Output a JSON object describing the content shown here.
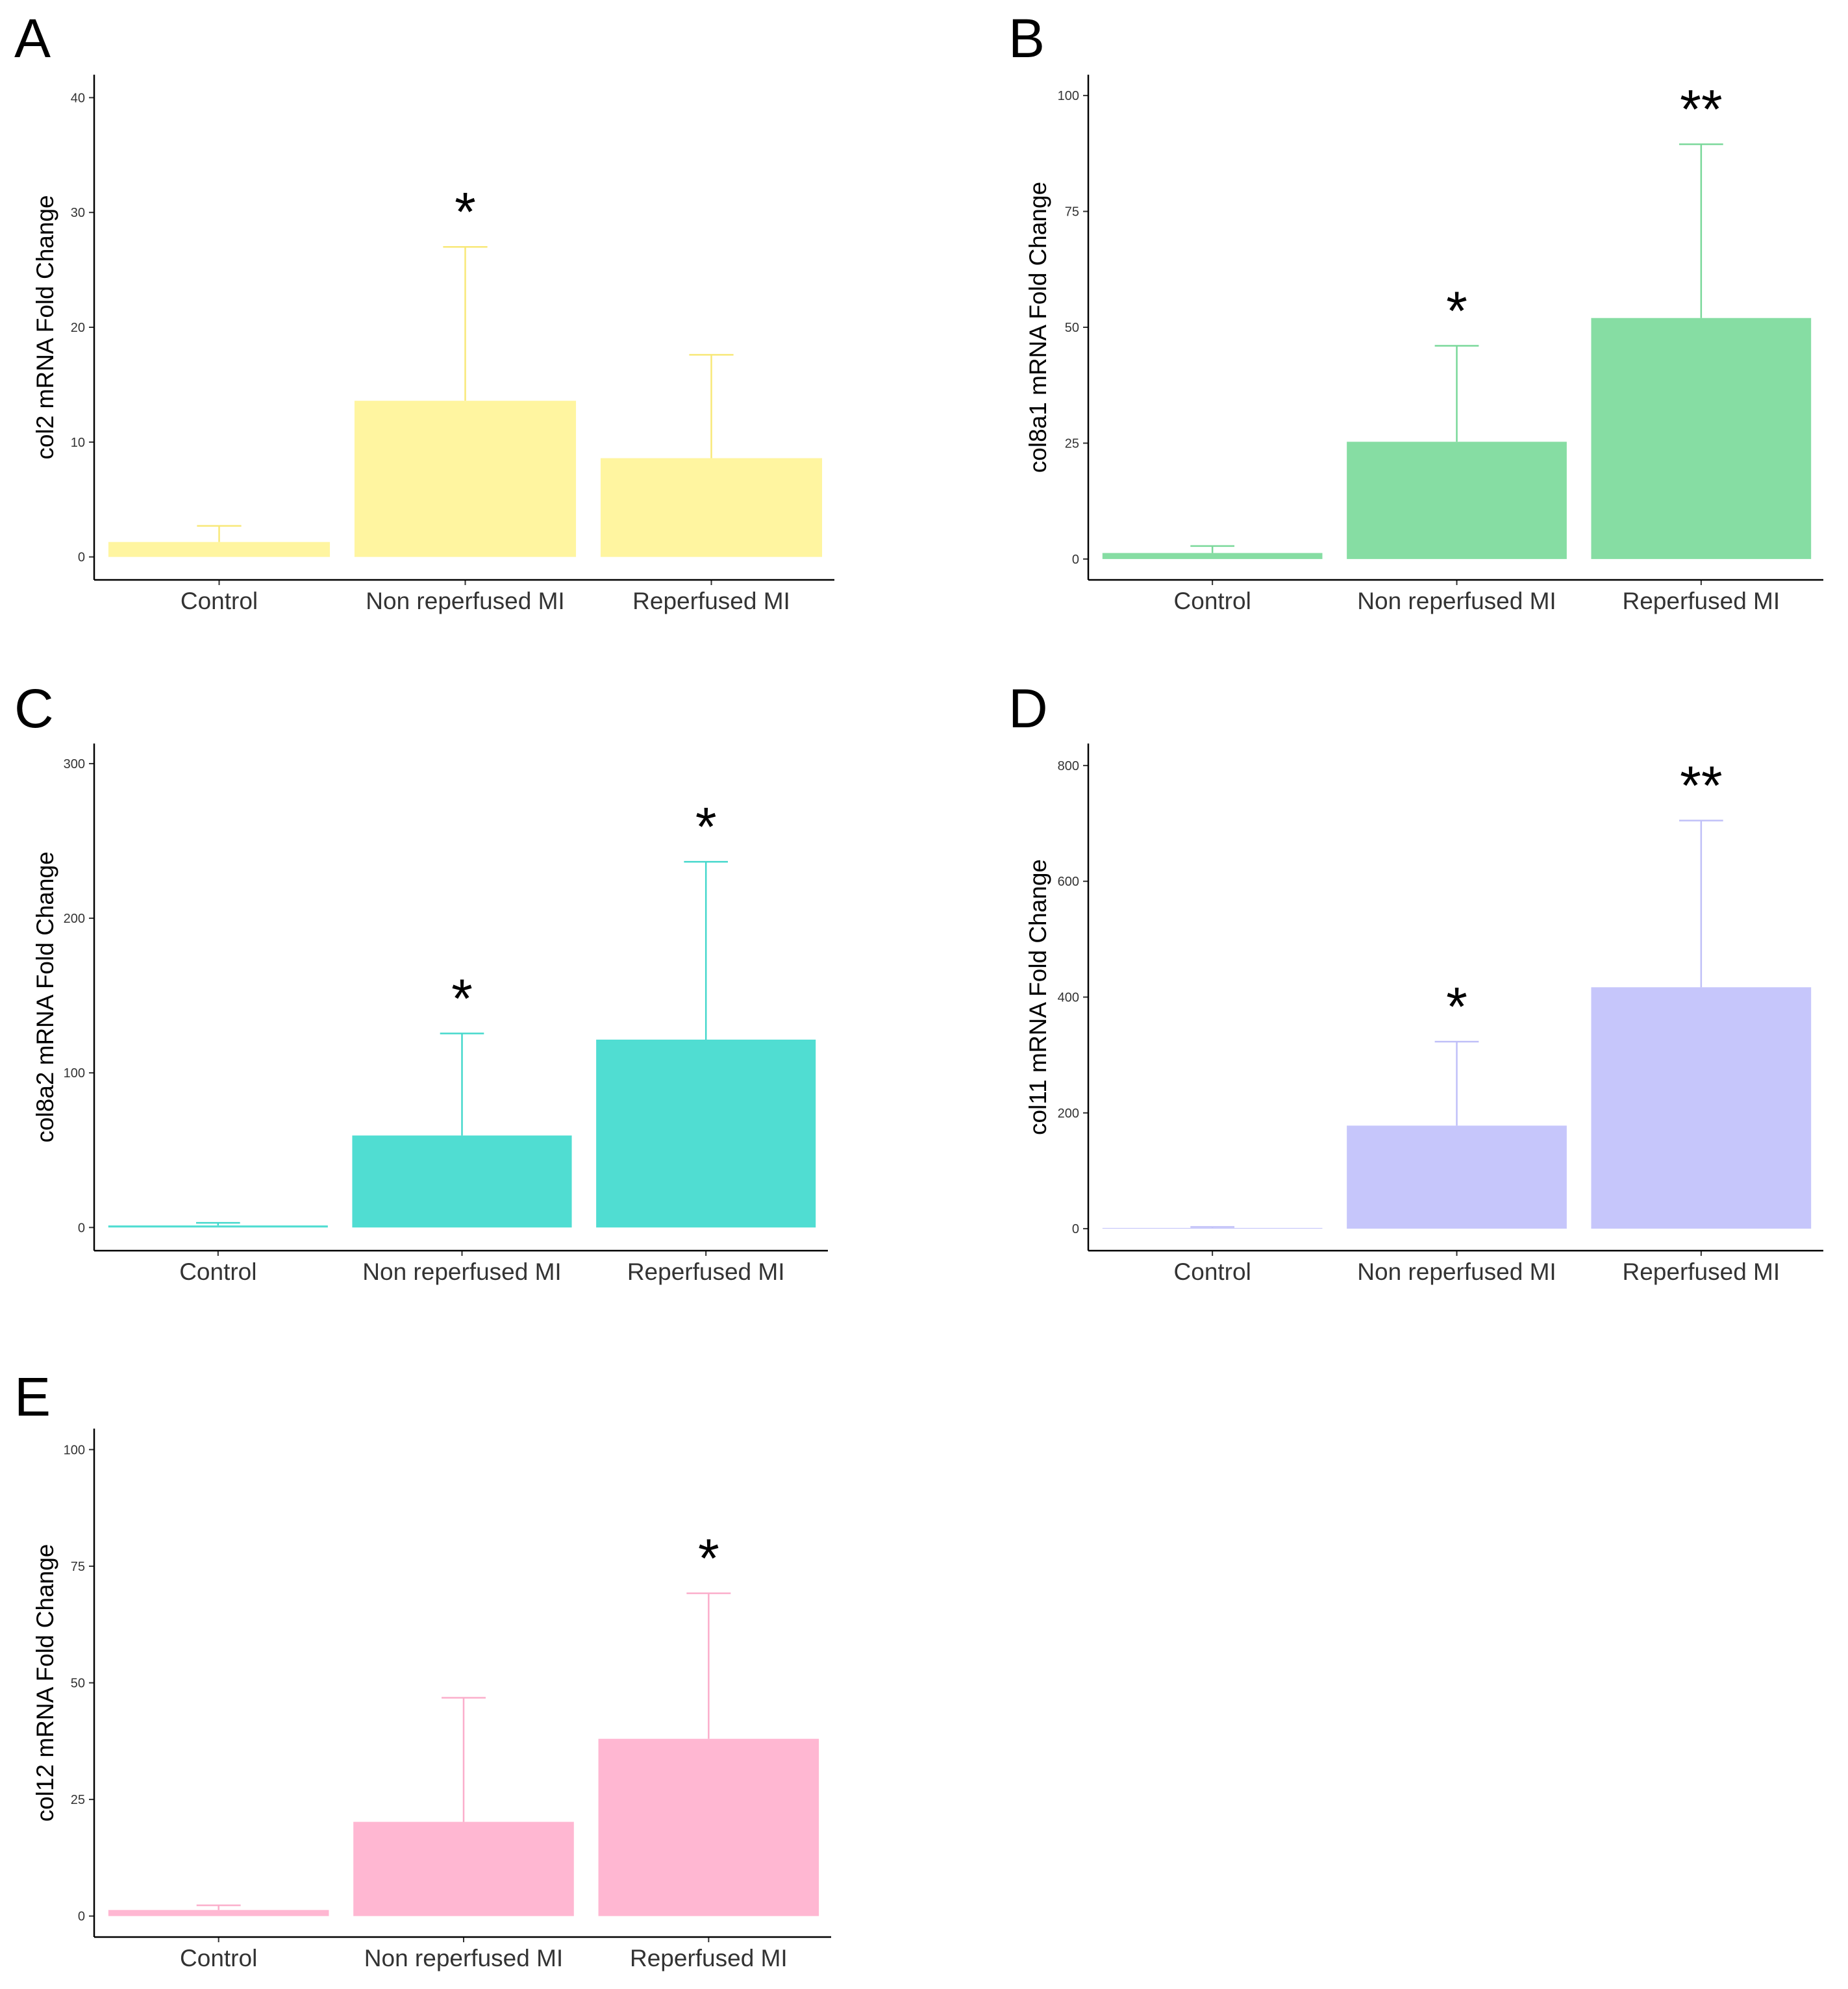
{
  "figure": {
    "background": "#ffffff"
  },
  "chart_data": [
    {
      "panel": "A",
      "type": "bar",
      "categories": [
        "Control",
        "Non reperfused MI",
        "Reperfused MI"
      ],
      "values": [
        1.3,
        13.6,
        8.6
      ],
      "error_upper": [
        2.7,
        27.0,
        17.6
      ],
      "significance": [
        "",
        "*",
        ""
      ],
      "ylabel": "col2 mRNA Fold Change",
      "xlabel": "",
      "ylim": [
        -2,
        42
      ],
      "yticks": [
        0,
        10,
        20,
        30,
        40
      ],
      "color": "#fff5a0",
      "error_color": "#f8e878"
    },
    {
      "panel": "B",
      "type": "bar",
      "categories": [
        "Control",
        "Non reperfused MI",
        "Reperfused MI"
      ],
      "values": [
        1.3,
        25.3,
        52.0
      ],
      "error_upper": [
        2.8,
        46.0,
        89.5
      ],
      "significance": [
        "",
        "*",
        "**"
      ],
      "ylabel": "col8a1 mRNA Fold Change",
      "xlabel": "",
      "ylim": [
        -4.5,
        104.5
      ],
      "yticks": [
        0,
        25,
        50,
        75,
        100
      ],
      "color": "#86dda3",
      "error_color": "#7ad89a"
    },
    {
      "panel": "C",
      "type": "bar",
      "categories": [
        "Control",
        "Non reperfused MI",
        "Reperfused MI"
      ],
      "values": [
        1.3,
        59.5,
        121.5
      ],
      "error_upper": [
        3.0,
        125.5,
        236.5
      ],
      "significance": [
        "",
        "*",
        "*"
      ],
      "ylabel": "col8a2 mRNA Fold Change",
      "xlabel": "",
      "ylim": [
        -15,
        313
      ],
      "yticks": [
        0,
        100,
        200,
        300
      ],
      "color": "#50ddd2",
      "error_color": "#45d8cc"
    },
    {
      "panel": "D",
      "type": "bar",
      "categories": [
        "Control",
        "Non reperfused MI",
        "Reperfused MI"
      ],
      "values": [
        1.3,
        178.0,
        417.0
      ],
      "error_upper": [
        3.0,
        323.0,
        705.0
      ],
      "significance": [
        "",
        "*",
        "**"
      ],
      "ylabel": "col11 mRNA Fold Change",
      "xlabel": "",
      "ylim": [
        -38,
        838
      ],
      "yticks": [
        0,
        200,
        400,
        600,
        800
      ],
      "color": "#c6c6fb",
      "error_color": "#c0c0f8"
    },
    {
      "panel": "E",
      "type": "bar",
      "categories": [
        "Control",
        "Non reperfused MI",
        "Reperfused MI"
      ],
      "values": [
        1.3,
        20.2,
        38.0
      ],
      "error_upper": [
        2.3,
        46.8,
        69.2
      ],
      "significance": [
        "",
        "",
        "*"
      ],
      "ylabel": "col12 mRNA Fold Change",
      "xlabel": "",
      "ylim": [
        -4.5,
        104.5
      ],
      "yticks": [
        0,
        25,
        50,
        75,
        100
      ],
      "color": "#ffb7d2",
      "error_color": "#fbaecb"
    }
  ]
}
